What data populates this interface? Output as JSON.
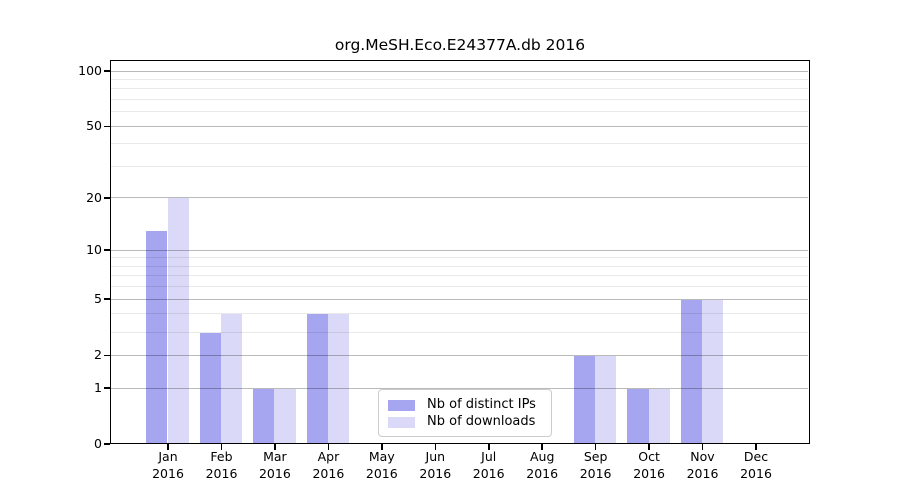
{
  "title": "org.MeSH.Eco.E24377A.db 2016",
  "colors": {
    "bar_ips": "#a5a5f0",
    "bar_downloads": "#dadaf8",
    "spine": "#000000",
    "grid_major": "rgba(0,0,0,0.27)",
    "grid_minor": "rgba(0,0,0,0.085)",
    "legend_border": "#cccccc",
    "background": "#ffffff"
  },
  "chart_data": {
    "type": "bar",
    "title": "org.MeSH.Eco.E24377A.db 2016",
    "categories": [
      "Jan 2016",
      "Feb 2016",
      "Mar 2016",
      "Apr 2016",
      "May 2016",
      "Jun 2016",
      "Jul 2016",
      "Aug 2016",
      "Sep 2016",
      "Oct 2016",
      "Nov 2016",
      "Dec 2016"
    ],
    "series": [
      {
        "name": "Nb of distinct IPs",
        "color": "#a5a5f0",
        "values": [
          13,
          3,
          1,
          4,
          0,
          0,
          0,
          0,
          2,
          1,
          5,
          0
        ]
      },
      {
        "name": "Nb of downloads",
        "color": "#dadaf8",
        "values": [
          20,
          4,
          1,
          4,
          0,
          0,
          0,
          0,
          2,
          1,
          5,
          0
        ]
      }
    ],
    "xlabel": "",
    "ylabel": "",
    "yscale": "log1p",
    "ylim": [
      0,
      115
    ],
    "yticks_major": [
      0,
      1,
      2,
      5,
      10,
      20,
      50,
      100
    ],
    "yticks_minor": [
      3,
      4,
      6,
      7,
      8,
      9,
      30,
      40,
      60,
      70,
      80,
      90
    ],
    "grid": true,
    "legend_position": "lower center"
  }
}
